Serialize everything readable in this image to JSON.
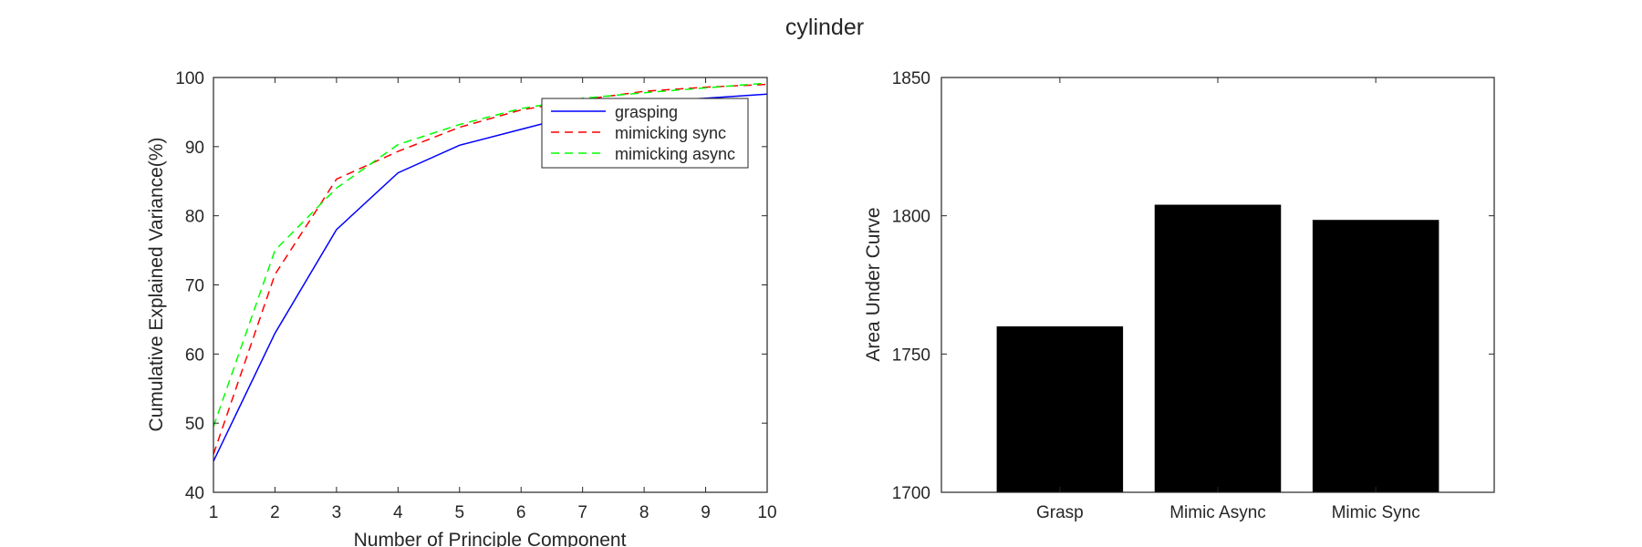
{
  "figure_title": "cylinder",
  "chart_data": [
    {
      "type": "line",
      "title": "",
      "xlabel": "Number of Principle Component",
      "ylabel": "Cumulative Explained Variance(%)",
      "xlim": [
        1,
        10
      ],
      "ylim": [
        40,
        100
      ],
      "xticks": [
        1,
        2,
        3,
        4,
        5,
        6,
        7,
        8,
        9,
        10
      ],
      "yticks": [
        40,
        50,
        60,
        70,
        80,
        90,
        100
      ],
      "grid": false,
      "legend_position": "top-right",
      "x": [
        1,
        2,
        3,
        4,
        5,
        6,
        7,
        8,
        9,
        10
      ],
      "series": [
        {
          "name": "grasping",
          "color": "#0000ff",
          "style": "solid",
          "values": [
            44.5,
            63.0,
            78.0,
            86.2,
            90.2,
            92.5,
            94.8,
            96.5,
            97.0,
            97.6
          ]
        },
        {
          "name": "mimicking sync",
          "color": "#ff0000",
          "style": "dashed",
          "values": [
            45.5,
            71.5,
            85.3,
            89.3,
            92.8,
            95.3,
            96.8,
            98.0,
            98.6,
            99.0
          ]
        },
        {
          "name": "mimicking async",
          "color": "#00ff00",
          "style": "dashed",
          "values": [
            49.5,
            75.0,
            84.0,
            90.3,
            93.2,
            95.5,
            97.0,
            97.8,
            98.5,
            99.2
          ]
        }
      ]
    },
    {
      "type": "bar",
      "title": "",
      "xlabel": "",
      "ylabel": "Area Under Curve",
      "ylim": [
        1700,
        1850
      ],
      "yticks": [
        1700,
        1750,
        1800,
        1850
      ],
      "grid": false,
      "categories": [
        "Grasp",
        "Mimic Async",
        "Mimic Sync"
      ],
      "values": [
        1760,
        1804,
        1798.5
      ],
      "color": "#000000"
    }
  ]
}
